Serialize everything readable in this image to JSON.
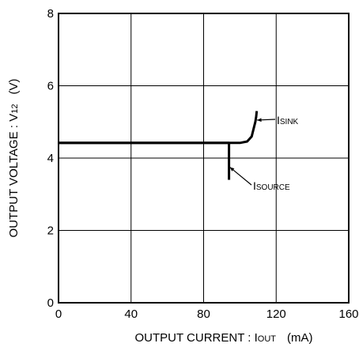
{
  "chart_data": {
    "type": "line",
    "xlabel": {
      "main": "OUTPUT  CURRENT : I",
      "sub": "OUT",
      "unit": "(mA)"
    },
    "ylabel": {
      "main": "OUTPUT  VOLTAGE : V",
      "sub": "12",
      "unit": "(V)"
    },
    "xlim": [
      0,
      160
    ],
    "ylim": [
      0,
      8
    ],
    "x_ticks": [
      "0",
      "40",
      "80",
      "120",
      "160"
    ],
    "y_ticks": [
      "0",
      "2",
      "4",
      "6",
      "8"
    ],
    "grid": true,
    "series": [
      {
        "name": "SINK",
        "x": [
          0,
          100,
          104,
          106.5,
          107.5,
          108.5,
          109,
          109.3
        ],
        "y": [
          4.42,
          4.42,
          4.46,
          4.6,
          4.8,
          5.0,
          5.15,
          5.3
        ]
      },
      {
        "name": "SOURCE",
        "x": [
          0,
          94,
          94,
          94
        ],
        "y": [
          4.42,
          4.42,
          4.1,
          3.4
        ]
      }
    ],
    "annotations": [
      {
        "main": "I",
        "sub": "SINK",
        "target_series": "SINK"
      },
      {
        "main": "I",
        "sub": "SOURCE",
        "target_series": "SOURCE"
      }
    ]
  }
}
